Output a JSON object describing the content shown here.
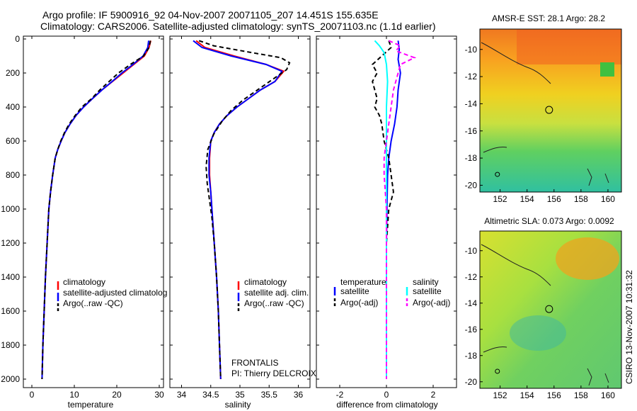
{
  "header": {
    "title_line1": "Argo profile: IF 5900916_92 04-Nov-2007 20071105_207 14.451S 155.635E",
    "title_line2": "Climatology: CARS2006. Satellite-adjusted climatology: synTS_20071103.nc (1.1d earlier)"
  },
  "side_label": "CSIRO 13-Nov-2007 10:31:32",
  "chart_data": [
    {
      "type": "line",
      "name": "temperature-profile",
      "xlabel": "temperature",
      "ylabel": "",
      "xlim": [
        -2,
        31
      ],
      "ylim": [
        2050,
        0
      ],
      "xticks": [
        0,
        10,
        20,
        30
      ],
      "yticks": [
        0,
        200,
        400,
        600,
        800,
        1000,
        1200,
        1400,
        1600,
        1800,
        2000
      ],
      "legend": [
        "climatology",
        "satellite-adjusted climatolog",
        "Argo(..raw -QC)"
      ],
      "series": [
        {
          "name": "climatology",
          "color": "#ff0000",
          "style": "solid",
          "points": [
            [
              28.0,
              10
            ],
            [
              27.6,
              50
            ],
            [
              26.5,
              100
            ],
            [
              24.0,
              150
            ],
            [
              21.5,
              200
            ],
            [
              19.0,
              250
            ],
            [
              16.5,
              300
            ],
            [
              14.3,
              350
            ],
            [
              12.2,
              400
            ],
            [
              10.4,
              450
            ],
            [
              9.0,
              500
            ],
            [
              7.8,
              550
            ],
            [
              6.9,
              600
            ],
            [
              6.1,
              650
            ],
            [
              5.5,
              700
            ],
            [
              4.9,
              800
            ],
            [
              4.4,
              900
            ],
            [
              4.0,
              1000
            ],
            [
              3.6,
              1200
            ],
            [
              3.2,
              1400
            ],
            [
              2.9,
              1600
            ],
            [
              2.6,
              1800
            ],
            [
              2.4,
              2000
            ]
          ]
        },
        {
          "name": "satellite-adjusted climatolog",
          "color": "#0000ff",
          "style": "solid",
          "points": [
            [
              27.5,
              10
            ],
            [
              27.3,
              50
            ],
            [
              26.2,
              100
            ],
            [
              23.8,
              150
            ],
            [
              21.2,
              200
            ],
            [
              18.9,
              250
            ],
            [
              16.5,
              300
            ],
            [
              14.3,
              350
            ],
            [
              12.2,
              400
            ],
            [
              10.4,
              450
            ],
            [
              9.0,
              500
            ],
            [
              7.8,
              550
            ],
            [
              6.9,
              600
            ],
            [
              6.1,
              650
            ],
            [
              5.5,
              700
            ],
            [
              4.9,
              800
            ],
            [
              4.4,
              900
            ],
            [
              4.0,
              1000
            ],
            [
              3.6,
              1200
            ],
            [
              3.2,
              1400
            ],
            [
              2.9,
              1600
            ],
            [
              2.6,
              1800
            ],
            [
              2.4,
              2000
            ]
          ]
        },
        {
          "name": "Argo(..raw -QC)",
          "color": "#000000",
          "style": "dashed",
          "points": [
            [
              27.9,
              10
            ],
            [
              27.6,
              50
            ],
            [
              26.3,
              100
            ],
            [
              23.2,
              150
            ],
            [
              20.4,
              200
            ],
            [
              18.2,
              250
            ],
            [
              16.0,
              300
            ],
            [
              14.1,
              350
            ],
            [
              11.8,
              400
            ],
            [
              10.2,
              450
            ],
            [
              8.8,
              500
            ],
            [
              7.7,
              550
            ],
            [
              6.8,
              600
            ],
            [
              6.1,
              650
            ],
            [
              5.5,
              700
            ],
            [
              4.9,
              800
            ],
            [
              4.4,
              900
            ],
            [
              4.0,
              1000
            ],
            [
              3.6,
              1200
            ],
            [
              3.2,
              1400
            ],
            [
              2.9,
              1600
            ],
            [
              2.6,
              1800
            ],
            [
              2.4,
              2000
            ]
          ]
        }
      ]
    },
    {
      "type": "line",
      "name": "salinity-profile",
      "xlabel": "salinity",
      "ylabel": "",
      "xlim": [
        33.8,
        36.2
      ],
      "ylim": [
        2050,
        0
      ],
      "xticks": [
        34,
        34.5,
        35,
        35.5,
        36
      ],
      "xticklabels": [
        "34",
        "34.5",
        "35",
        "35.5",
        "36"
      ],
      "legend": [
        "climatology",
        "satellite adj. clim.",
        "Argo(..raw -QC)"
      ],
      "annotation": [
        "FRONTALIS",
        "PI: Thierry DELCROIX"
      ],
      "series": [
        {
          "name": "climatology",
          "color": "#ff0000",
          "style": "solid",
          "points": [
            [
              34.25,
              10
            ],
            [
              34.4,
              50
            ],
            [
              34.9,
              100
            ],
            [
              35.45,
              150
            ],
            [
              35.75,
              190
            ],
            [
              35.6,
              250
            ],
            [
              35.35,
              300
            ],
            [
              35.15,
              350
            ],
            [
              34.95,
              400
            ],
            [
              34.78,
              450
            ],
            [
              34.65,
              500
            ],
            [
              34.56,
              550
            ],
            [
              34.5,
              600
            ],
            [
              34.48,
              700
            ],
            [
              34.48,
              800
            ],
            [
              34.5,
              900
            ],
            [
              34.52,
              1000
            ],
            [
              34.56,
              1200
            ],
            [
              34.6,
              1400
            ],
            [
              34.63,
              1600
            ],
            [
              34.65,
              1800
            ],
            [
              34.67,
              2000
            ]
          ]
        },
        {
          "name": "satellite adj. clim.",
          "color": "#0000ff",
          "style": "solid",
          "points": [
            [
              34.2,
              10
            ],
            [
              34.35,
              50
            ],
            [
              34.85,
              100
            ],
            [
              35.45,
              150
            ],
            [
              35.72,
              190
            ],
            [
              35.6,
              250
            ],
            [
              35.35,
              300
            ],
            [
              35.15,
              350
            ],
            [
              34.95,
              400
            ],
            [
              34.78,
              450
            ],
            [
              34.65,
              500
            ],
            [
              34.56,
              550
            ],
            [
              34.5,
              600
            ],
            [
              34.47,
              700
            ],
            [
              34.47,
              800
            ],
            [
              34.5,
              900
            ],
            [
              34.52,
              1000
            ],
            [
              34.56,
              1200
            ],
            [
              34.6,
              1400
            ],
            [
              34.63,
              1600
            ],
            [
              34.65,
              1800
            ],
            [
              34.67,
              2000
            ]
          ]
        },
        {
          "name": "Argo(..raw -QC)",
          "color": "#000000",
          "style": "dashed",
          "points": [
            [
              34.3,
              10
            ],
            [
              34.55,
              40
            ],
            [
              35.2,
              80
            ],
            [
              35.7,
              110
            ],
            [
              35.85,
              140
            ],
            [
              35.8,
              180
            ],
            [
              35.55,
              240
            ],
            [
              35.3,
              300
            ],
            [
              35.05,
              360
            ],
            [
              34.85,
              420
            ],
            [
              34.7,
              480
            ],
            [
              34.55,
              560
            ],
            [
              34.45,
              650
            ],
            [
              34.42,
              750
            ],
            [
              34.44,
              850
            ],
            [
              34.48,
              950
            ],
            [
              34.52,
              1050
            ],
            [
              34.56,
              1200
            ],
            [
              34.6,
              1400
            ],
            [
              34.63,
              1600
            ],
            [
              34.65,
              1800
            ],
            [
              34.67,
              2000
            ]
          ]
        }
      ]
    },
    {
      "type": "line",
      "name": "difference-profile",
      "xlabel": "difference from climatology",
      "ylabel": "",
      "xlim": [
        -3,
        3
      ],
      "ylim": [
        2050,
        0
      ],
      "xticks": [
        -2,
        0,
        2
      ],
      "legend_temperature": [
        "temperature",
        "satellite",
        "Argo(-adj)"
      ],
      "legend_salinity": [
        "salinity",
        "satellite",
        "Argo(-adj)"
      ],
      "series": [
        {
          "name": "temperature satellite",
          "color": "#0000ff",
          "style": "solid",
          "points": [
            [
              0.5,
              10
            ],
            [
              0.55,
              60
            ],
            [
              0.5,
              120
            ],
            [
              0.6,
              200
            ],
            [
              0.5,
              300
            ],
            [
              0.45,
              400
            ],
            [
              0.35,
              500
            ],
            [
              0.2,
              600
            ],
            [
              0.1,
              700
            ],
            [
              0.05,
              800
            ],
            [
              0.02,
              1000
            ],
            [
              0.0,
              1200
            ],
            [
              0.0,
              1600
            ],
            [
              0.0,
              2000
            ]
          ]
        },
        {
          "name": "temperature Argo(-adj)",
          "color": "#000000",
          "style": "dashed",
          "points": [
            [
              0.1,
              10
            ],
            [
              0.2,
              50
            ],
            [
              -0.2,
              100
            ],
            [
              -0.6,
              150
            ],
            [
              -0.4,
              200
            ],
            [
              -0.6,
              250
            ],
            [
              -0.5,
              300
            ],
            [
              -0.4,
              350
            ],
            [
              -0.5,
              400
            ],
            [
              -0.3,
              450
            ],
            [
              -0.2,
              500
            ],
            [
              -0.1,
              600
            ],
            [
              0.1,
              700
            ],
            [
              0.2,
              800
            ],
            [
              0.3,
              900
            ],
            [
              0.1,
              1000
            ],
            [
              0.0,
              1200
            ],
            [
              0.0,
              1600
            ],
            [
              0.0,
              2000
            ]
          ]
        },
        {
          "name": "salinity satellite",
          "color": "#00ffff",
          "style": "solid",
          "points": [
            [
              -0.5,
              10
            ],
            [
              -0.3,
              40
            ],
            [
              -0.1,
              80
            ],
            [
              0.0,
              150
            ],
            [
              0.05,
              250
            ],
            [
              0.0,
              400
            ],
            [
              0.0,
              600
            ],
            [
              0.0,
              800
            ],
            [
              0.0,
              1000
            ],
            [
              0.0,
              1400
            ],
            [
              0.0,
              2000
            ]
          ]
        },
        {
          "name": "salinity Argo(-adj)",
          "color": "#ff00ff",
          "style": "dashed",
          "points": [
            [
              0.1,
              10
            ],
            [
              0.6,
              40
            ],
            [
              0.4,
              70
            ],
            [
              1.2,
              110
            ],
            [
              0.6,
              150
            ],
            [
              0.5,
              200
            ],
            [
              0.3,
              300
            ],
            [
              0.2,
              400
            ],
            [
              0.1,
              500
            ],
            [
              0.0,
              600
            ],
            [
              -0.1,
              700
            ],
            [
              -0.1,
              800
            ],
            [
              -0.05,
              900
            ],
            [
              0.0,
              1000
            ],
            [
              0.0,
              1400
            ],
            [
              0.0,
              2000
            ]
          ]
        }
      ]
    },
    {
      "type": "heatmap",
      "name": "sst-map",
      "title": "AMSR-E SST: 28.1 Argo: 28.2",
      "xlim": [
        150.5,
        161
      ],
      "ylim": [
        -20.5,
        -8.5
      ],
      "xticks": [
        152,
        154,
        156,
        158,
        160
      ],
      "yticks": [
        -10,
        -12,
        -14,
        -16,
        -18,
        -20
      ],
      "marker": [
        155.635,
        -14.451
      ]
    },
    {
      "type": "heatmap",
      "name": "sla-map",
      "title": "Altimetric SLA: 0.073 Argo: 0.0092",
      "xlim": [
        150.5,
        161
      ],
      "ylim": [
        -20.5,
        -8.5
      ],
      "xticks": [
        152,
        154,
        156,
        158,
        160
      ],
      "yticks": [
        -10,
        -12,
        -14,
        -16,
        -18,
        -20
      ],
      "marker": [
        155.635,
        -14.451
      ]
    }
  ]
}
